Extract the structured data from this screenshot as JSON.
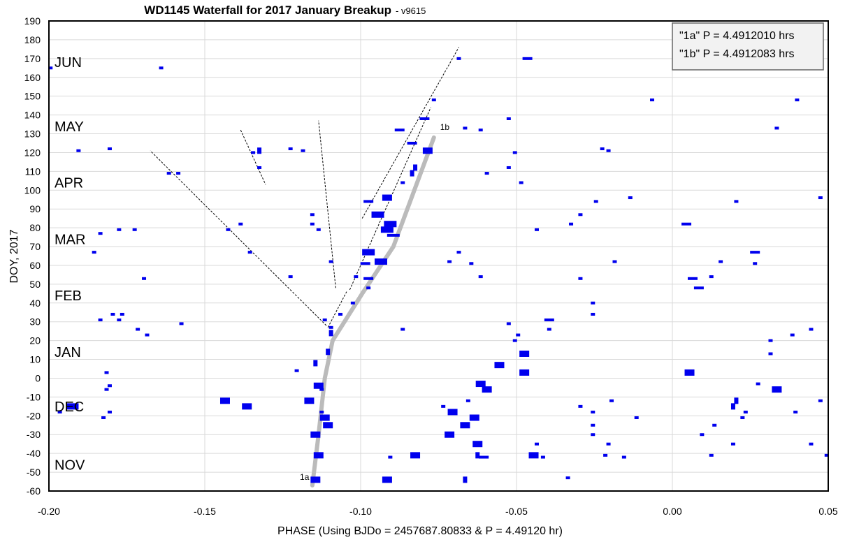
{
  "chart_data": {
    "type": "scatter",
    "title": "WD1145 Waterfall for 2017 January Breakup",
    "subtitle": "- v9615",
    "xlabel": "PHASE (Using BJDo = 2457687.80833 & P = 4.49120 hr)",
    "ylabel": "DOY, 2017",
    "xlim": [
      -0.2,
      0.05
    ],
    "ylim": [
      -60,
      190
    ],
    "x_ticks": [
      -0.2,
      -0.15,
      -0.1,
      -0.05,
      0.0,
      0.05
    ],
    "x_tick_labels": [
      "-0.20",
      "-0.15",
      "-0.10",
      "-0.05",
      "0.00",
      "0.05"
    ],
    "y_ticks": [
      -60,
      -50,
      -40,
      -30,
      -20,
      -10,
      0,
      10,
      20,
      30,
      40,
      50,
      60,
      70,
      80,
      90,
      100,
      110,
      120,
      130,
      140,
      150,
      160,
      170,
      180,
      190
    ],
    "y_tick_labels": [
      "-60",
      "-50",
      "-40",
      "-30",
      "-20",
      "-10",
      "0",
      "10",
      "20",
      "30",
      "40",
      "50",
      "60",
      "70",
      "80",
      "90",
      "100",
      "110",
      "120",
      "130",
      "140",
      "150",
      "160",
      "170",
      "180",
      "190"
    ],
    "grid": true,
    "legend_position": "top-right",
    "legend": [
      "\"1a\" P = 4.4912010 hrs",
      "\"1b\" P = 4.4912083 hrs"
    ],
    "month_labels": [
      {
        "text": "JUN",
        "y": 168
      },
      {
        "text": "MAY",
        "y": 134
      },
      {
        "text": "APR",
        "y": 104
      },
      {
        "text": "MAR",
        "y": 74
      },
      {
        "text": "FEB",
        "y": 44
      },
      {
        "text": "JAN",
        "y": 14
      },
      {
        "text": "DEC",
        "y": -15
      },
      {
        "text": "NOV",
        "y": -46
      }
    ],
    "colors": {
      "dips": "#0000ee",
      "trend": "#bbbbbb",
      "guides": "#000000"
    },
    "trend_line_1a": [
      [
        -0.1155,
        -57
      ],
      [
        -0.1135,
        -30
      ],
      [
        -0.1115,
        0
      ],
      [
        -0.109,
        20
      ]
    ],
    "trend_line_1b": [
      [
        -0.109,
        20
      ],
      [
        -0.0995,
        45
      ],
      [
        -0.0895,
        70
      ],
      [
        -0.0765,
        128
      ]
    ],
    "trend_labels": [
      {
        "text": "1a",
        "x": -0.1195,
        "y": -54
      },
      {
        "text": "1b",
        "x": -0.0745,
        "y": 132
      }
    ],
    "guide_lines": [
      [
        [
          -0.111,
          28
        ],
        [
          -0.1675,
          121
        ]
      ],
      [
        [
          -0.1105,
          27
        ],
        [
          -0.1045,
          46
        ]
      ],
      [
        [
          -0.108,
          48
        ],
        [
          -0.1135,
          137
        ]
      ],
      [
        [
          -0.1385,
          132
        ],
        [
          -0.1305,
          103
        ]
      ],
      [
        [
          -0.1035,
          47
        ],
        [
          -0.0775,
          144
        ]
      ],
      [
        [
          -0.0995,
          85
        ],
        [
          -0.0685,
          176
        ]
      ]
    ],
    "dips": [
      [
        -0.1995,
        165,
        1,
        1
      ],
      [
        -0.164,
        165,
        1,
        1
      ],
      [
        -0.0465,
        170,
        2,
        1
      ],
      [
        -0.0685,
        170,
        1,
        1
      ],
      [
        -0.0065,
        148,
        1,
        1
      ],
      [
        0.04,
        148,
        1,
        1
      ],
      [
        -0.0765,
        148,
        1,
        1
      ],
      [
        -0.0795,
        138,
        2,
        1
      ],
      [
        -0.0525,
        138,
        1,
        1
      ],
      [
        -0.0875,
        132,
        2,
        1
      ],
      [
        -0.0665,
        133,
        1,
        1
      ],
      [
        -0.0615,
        132,
        1,
        1
      ],
      [
        0.0335,
        133,
        1,
        1
      ],
      [
        -0.0835,
        125,
        2,
        1
      ],
      [
        -0.0785,
        121,
        2,
        2
      ],
      [
        -0.0505,
        120,
        1,
        1
      ],
      [
        -0.0225,
        122,
        1,
        1
      ],
      [
        -0.0205,
        121,
        1,
        1
      ],
      [
        -0.1905,
        121,
        1,
        1
      ],
      [
        -0.1805,
        122,
        1,
        1
      ],
      [
        -0.1345,
        120,
        1,
        1
      ],
      [
        -0.1325,
        121,
        1,
        2
      ],
      [
        -0.1225,
        122,
        1,
        1
      ],
      [
        -0.1185,
        121,
        1,
        1
      ],
      [
        -0.0825,
        112,
        1,
        2
      ],
      [
        -0.0525,
        112,
        1,
        1
      ],
      [
        -0.0835,
        109,
        1,
        2
      ],
      [
        -0.1615,
        109,
        1,
        1
      ],
      [
        -0.1585,
        109,
        1,
        1
      ],
      [
        -0.0595,
        109,
        1,
        1
      ],
      [
        -0.1325,
        112,
        1,
        1
      ],
      [
        -0.0865,
        104,
        1,
        1
      ],
      [
        -0.0485,
        104,
        1,
        1
      ],
      [
        -0.0915,
        96,
        2,
        2
      ],
      [
        -0.0135,
        96,
        1,
        1
      ],
      [
        0.0475,
        96,
        1,
        1
      ],
      [
        -0.0245,
        94,
        1,
        1
      ],
      [
        0.0205,
        94,
        1,
        1
      ],
      [
        -0.0975,
        94,
        2,
        1
      ],
      [
        -0.0945,
        87,
        3,
        2
      ],
      [
        -0.1155,
        87,
        1,
        1
      ],
      [
        -0.0295,
        87,
        1,
        1
      ],
      [
        -0.0905,
        82,
        3,
        2
      ],
      [
        -0.0915,
        79,
        3,
        2
      ],
      [
        -0.0895,
        76,
        3,
        1
      ],
      [
        -0.1155,
        82,
        1,
        1
      ],
      [
        -0.1135,
        79,
        1,
        1
      ],
      [
        -0.1385,
        82,
        1,
        1
      ],
      [
        -0.1425,
        79,
        1,
        1
      ],
      [
        -0.1775,
        79,
        1,
        1
      ],
      [
        -0.1725,
        79,
        1,
        1
      ],
      [
        -0.1835,
        77,
        1,
        1
      ],
      [
        -0.0435,
        79,
        1,
        1
      ],
      [
        -0.0325,
        82,
        1,
        1
      ],
      [
        0.0045,
        82,
        2,
        1
      ],
      [
        -0.0975,
        67,
        3,
        2
      ],
      [
        -0.0685,
        67,
        1,
        1
      ],
      [
        -0.1355,
        67,
        1,
        1
      ],
      [
        -0.1855,
        67,
        1,
        1
      ],
      [
        0.0265,
        67,
        2,
        1
      ],
      [
        -0.0935,
        62,
        3,
        2
      ],
      [
        -0.0985,
        61,
        2,
        1
      ],
      [
        -0.1095,
        62,
        1,
        1
      ],
      [
        -0.0715,
        62,
        1,
        1
      ],
      [
        -0.0645,
        61,
        1,
        1
      ],
      [
        -0.0185,
        62,
        1,
        1
      ],
      [
        0.0155,
        62,
        1,
        1
      ],
      [
        0.0265,
        61,
        1,
        1
      ],
      [
        -0.1015,
        54,
        1,
        1
      ],
      [
        -0.0975,
        53,
        2,
        1
      ],
      [
        -0.1225,
        54,
        1,
        1
      ],
      [
        -0.1695,
        53,
        1,
        1
      ],
      [
        -0.0615,
        54,
        1,
        1
      ],
      [
        -0.0295,
        53,
        1,
        1
      ],
      [
        0.0065,
        53,
        2,
        1
      ],
      [
        0.0125,
        54,
        1,
        1
      ],
      [
        0.0085,
        48,
        2,
        1
      ],
      [
        -0.0975,
        48,
        1,
        1
      ],
      [
        -0.1025,
        40,
        1,
        1
      ],
      [
        -0.0255,
        40,
        1,
        1
      ],
      [
        -0.1065,
        34,
        1,
        1
      ],
      [
        -0.1795,
        34,
        1,
        1
      ],
      [
        -0.1765,
        34,
        1,
        1
      ],
      [
        -0.0255,
        34,
        1,
        1
      ],
      [
        -0.1095,
        27,
        1,
        1
      ],
      [
        -0.1095,
        24,
        1,
        2
      ],
      [
        -0.1115,
        31,
        1,
        1
      ],
      [
        -0.1835,
        31,
        1,
        1
      ],
      [
        -0.1775,
        31,
        1,
        1
      ],
      [
        -0.1575,
        29,
        1,
        1
      ],
      [
        -0.0395,
        31,
        2,
        1
      ],
      [
        -0.0525,
        29,
        1,
        1
      ],
      [
        -0.0395,
        26,
        1,
        1
      ],
      [
        -0.1715,
        26,
        1,
        1
      ],
      [
        -0.0865,
        26,
        1,
        1
      ],
      [
        0.0445,
        26,
        1,
        1
      ],
      [
        -0.1685,
        23,
        1,
        1
      ],
      [
        -0.0495,
        23,
        1,
        1
      ],
      [
        0.0385,
        23,
        1,
        1
      ],
      [
        -0.0505,
        20,
        1,
        1
      ],
      [
        0.0315,
        20,
        1,
        1
      ],
      [
        -0.1105,
        14,
        1,
        2
      ],
      [
        -0.0475,
        13,
        2,
        2
      ],
      [
        0.0315,
        13,
        1,
        1
      ],
      [
        -0.1145,
        8,
        1,
        2
      ],
      [
        -0.0555,
        7,
        2,
        2
      ],
      [
        -0.1205,
        4,
        1,
        1
      ],
      [
        -0.1815,
        3,
        1,
        1
      ],
      [
        -0.0475,
        3,
        2,
        2
      ],
      [
        0.0055,
        3,
        2,
        2
      ],
      [
        -0.1135,
        -4,
        2,
        2
      ],
      [
        -0.1125,
        -6,
        1,
        1
      ],
      [
        -0.0615,
        -3,
        2,
        2
      ],
      [
        -0.0595,
        -6,
        2,
        2
      ],
      [
        -0.1805,
        -4,
        1,
        1
      ],
      [
        -0.1815,
        -6,
        1,
        1
      ],
      [
        0.0275,
        -3,
        1,
        1
      ],
      [
        0.0335,
        -6,
        2,
        2
      ],
      [
        -0.1435,
        -12,
        2,
        2
      ],
      [
        -0.1165,
        -12,
        2,
        2
      ],
      [
        -0.1365,
        -15,
        2,
        2
      ],
      [
        -0.1925,
        -15,
        3,
        2
      ],
      [
        -0.0655,
        -12,
        1,
        1
      ],
      [
        -0.0195,
        -12,
        1,
        1
      ],
      [
        0.0205,
        -12,
        1,
        2
      ],
      [
        0.0475,
        -12,
        1,
        1
      ],
      [
        -0.0735,
        -15,
        1,
        1
      ],
      [
        -0.0295,
        -15,
        1,
        1
      ],
      [
        0.0195,
        -15,
        1,
        2
      ],
      [
        -0.1125,
        -18,
        1,
        1
      ],
      [
        -0.0705,
        -18,
        2,
        2
      ],
      [
        -0.1965,
        -18,
        1,
        1
      ],
      [
        -0.1805,
        -18,
        1,
        1
      ],
      [
        -0.0255,
        -18,
        1,
        1
      ],
      [
        0.0235,
        -18,
        1,
        1
      ],
      [
        0.0395,
        -18,
        1,
        1
      ],
      [
        -0.1115,
        -21,
        2,
        2
      ],
      [
        -0.0635,
        -21,
        2,
        2
      ],
      [
        -0.1825,
        -21,
        1,
        1
      ],
      [
        -0.0115,
        -21,
        1,
        1
      ],
      [
        0.0225,
        -21,
        1,
        1
      ],
      [
        -0.1105,
        -25,
        2,
        2
      ],
      [
        -0.0665,
        -25,
        2,
        2
      ],
      [
        -0.0255,
        -25,
        1,
        1
      ],
      [
        0.0135,
        -25,
        1,
        1
      ],
      [
        -0.1145,
        -30,
        2,
        2
      ],
      [
        -0.0715,
        -30,
        2,
        2
      ],
      [
        -0.0255,
        -30,
        1,
        1
      ],
      [
        0.0095,
        -30,
        1,
        1
      ],
      [
        -0.0625,
        -35,
        2,
        2
      ],
      [
        -0.0435,
        -35,
        1,
        1
      ],
      [
        -0.0205,
        -35,
        1,
        1
      ],
      [
        0.0195,
        -35,
        1,
        1
      ],
      [
        0.0445,
        -35,
        1,
        1
      ],
      [
        -0.1135,
        -41,
        2,
        2
      ],
      [
        -0.0625,
        -41,
        1,
        2
      ],
      [
        -0.0905,
        -42,
        1,
        1
      ],
      [
        -0.0825,
        -41,
        2,
        2
      ],
      [
        -0.0445,
        -41,
        2,
        2
      ],
      [
        -0.0415,
        -42,
        1,
        1
      ],
      [
        -0.0605,
        -42,
        2,
        1
      ],
      [
        -0.0215,
        -41,
        1,
        1
      ],
      [
        -0.0155,
        -42,
        1,
        1
      ],
      [
        0.0125,
        -41,
        1,
        1
      ],
      [
        0.0495,
        -41,
        1,
        1
      ],
      [
        -0.1145,
        -54,
        2,
        2
      ],
      [
        -0.0915,
        -54,
        2,
        2
      ],
      [
        -0.0665,
        -54,
        1,
        2
      ],
      [
        -0.0335,
        -53,
        1,
        1
      ]
    ]
  }
}
